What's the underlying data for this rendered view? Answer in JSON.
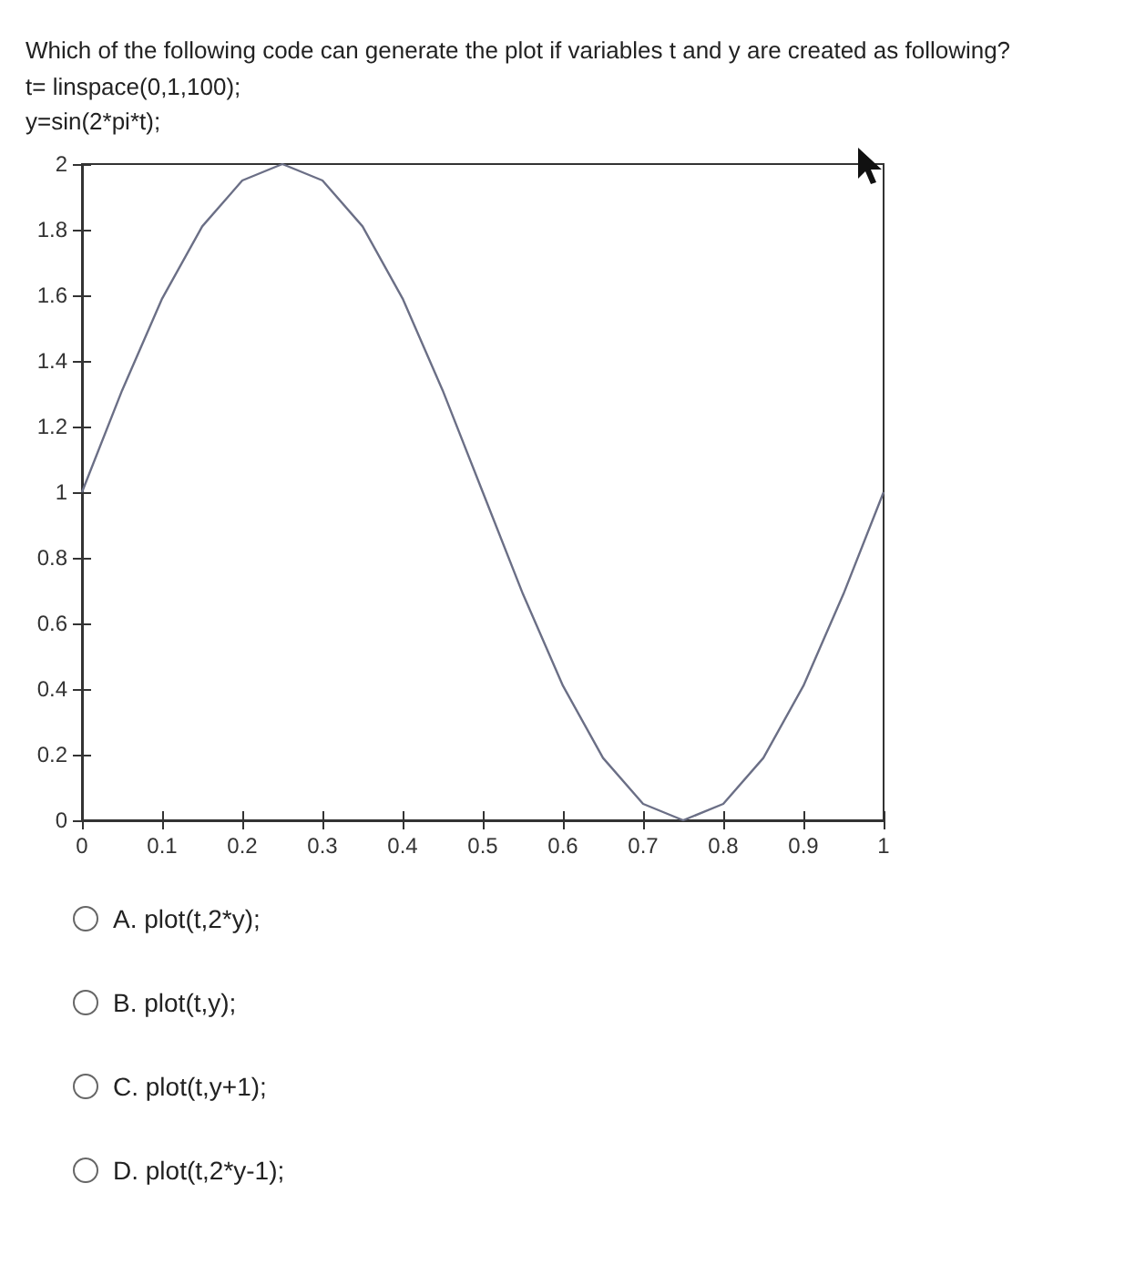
{
  "chart_data": {
    "type": "line",
    "title": "Which of the following code can generate the plot if variables t and y are created as following?",
    "annotations": [
      "t= linspace(0,1,100);",
      "y=sin(2*pi*t);",
      "A. plot(t,2*y);",
      "B. plot(t,y);",
      "C. plot(t,y+1);",
      "D. plot(t,2*y-1);"
    ],
    "x": [
      0,
      0.05,
      0.1,
      0.15,
      0.2,
      0.25,
      0.3,
      0.35,
      0.4,
      0.45,
      0.5,
      0.55,
      0.6,
      0.65,
      0.7,
      0.75,
      0.8,
      0.85,
      0.9,
      0.95,
      1
    ],
    "series": [
      {
        "color": "#6b6f86",
        "values": [
          1,
          1.31,
          1.59,
          1.81,
          1.95,
          2,
          1.95,
          1.81,
          1.59,
          1.31,
          1,
          0.69,
          0.41,
          0.19,
          0.05,
          0,
          0.05,
          0.19,
          0.41,
          0.69,
          1
        ]
      }
    ],
    "xlim": [
      0,
      1
    ],
    "xticks": [
      0,
      0.1,
      0.2,
      0.3,
      0.4,
      0.5,
      0.6,
      0.7,
      0.8,
      0.9,
      1
    ],
    "ylim": [
      0,
      2
    ],
    "yticks": [
      0,
      0.2,
      0.4,
      0.6,
      0.8,
      1,
      1.2,
      1.4,
      1.6,
      1.8,
      2
    ],
    "grid": false,
    "marker": "none",
    "line_style": "solid"
  }
}
